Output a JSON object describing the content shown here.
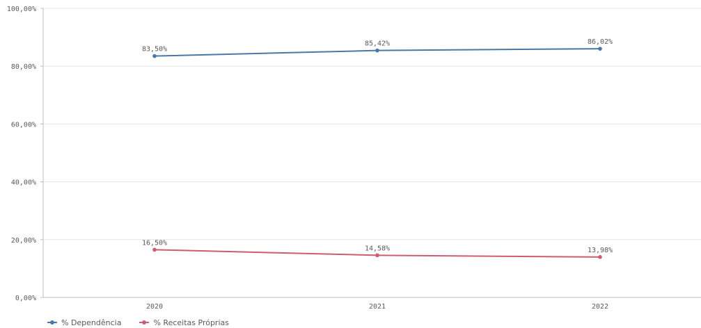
{
  "chart_data": {
    "type": "line",
    "categories": [
      "2020",
      "2021",
      "2022"
    ],
    "y_ticks": [
      "0,00%",
      "20,00%",
      "40,00%",
      "60,00%",
      "80,00%",
      "100,00%"
    ],
    "ylim": [
      0,
      100
    ],
    "grid": true,
    "legend_position": "bottom-left",
    "series": [
      {
        "name": "% Dependência",
        "color": "#4a77a8",
        "values": [
          83.5,
          85.42,
          86.02
        ],
        "labels": [
          "83,50%",
          "85,42%",
          "86,02%"
        ]
      },
      {
        "name": "% Receitas Próprias",
        "color": "#cd5c6e",
        "values": [
          16.5,
          14.58,
          13.98
        ],
        "labels": [
          "16,50%",
          "14,58%",
          "13,98%"
        ]
      }
    ]
  }
}
